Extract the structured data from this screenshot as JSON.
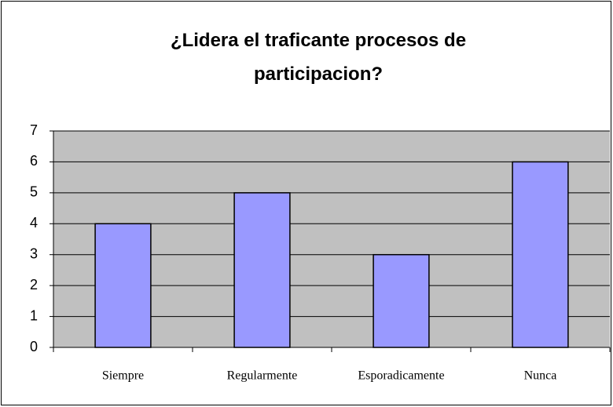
{
  "chart_data": {
    "type": "bar",
    "title": "¿Lidera el traficante procesos de participacion?",
    "categories": [
      "Siempre",
      "Regularmente",
      "Esporadicamente",
      "Nunca"
    ],
    "values": [
      4,
      5,
      3,
      6
    ],
    "color": "#9999ff",
    "ylim": [
      0,
      7
    ],
    "yticks": [
      0,
      1,
      2,
      3,
      4,
      5,
      6,
      7
    ],
    "grid": true
  }
}
